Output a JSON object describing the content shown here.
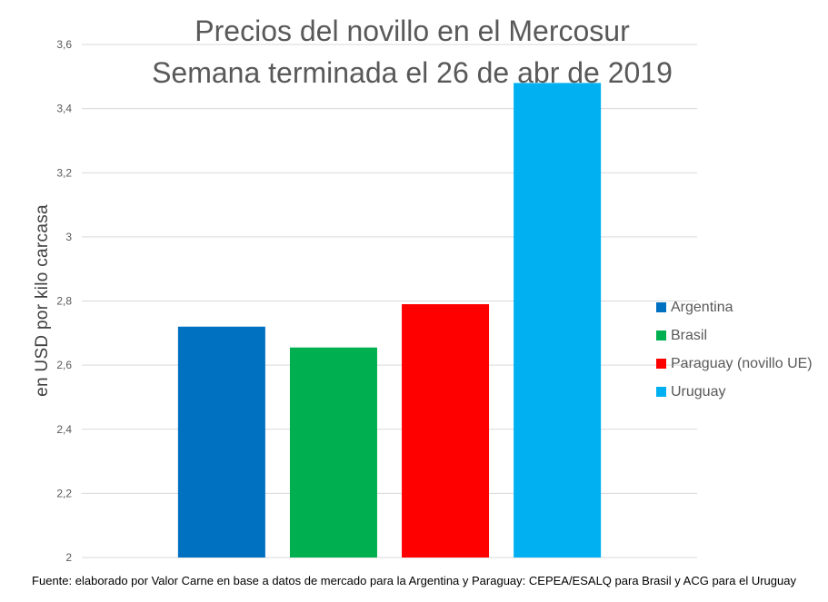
{
  "chart_data": {
    "type": "bar",
    "title": [
      "Precios del novillo en el Mercosur",
      "Semana terminada el 26 de abr de 2019"
    ],
    "xlabel": "",
    "ylabel": "en USD por kilo carcasa",
    "ylim": [
      2,
      3.6
    ],
    "yticks": [
      2,
      2.2,
      2.4,
      2.6,
      2.8,
      3,
      3.2,
      3.4,
      3.6
    ],
    "ytick_labels": [
      "2",
      "2,2",
      "2,4",
      "2,6",
      "2,8",
      "3",
      "3,2",
      "3,4",
      "3,6"
    ],
    "grid": true,
    "legend_position": "right",
    "series": [
      {
        "name": "Argentina",
        "value": 2.72,
        "color": "#0070c0"
      },
      {
        "name": "Brasil",
        "value": 2.655,
        "color": "#00b050"
      },
      {
        "name": "Paraguay (novillo UE)",
        "value": 2.79,
        "color": "#ff0000"
      },
      {
        "name": "Uruguay",
        "value": 3.48,
        "color": "#00b0f0"
      }
    ]
  },
  "footer": {
    "source": "Fuente: elaborado por Valor Carne en base a datos de mercado para la Argentina y Paraguay: CEPEA/ESALQ para Brasil y ACG para el Uruguay"
  }
}
